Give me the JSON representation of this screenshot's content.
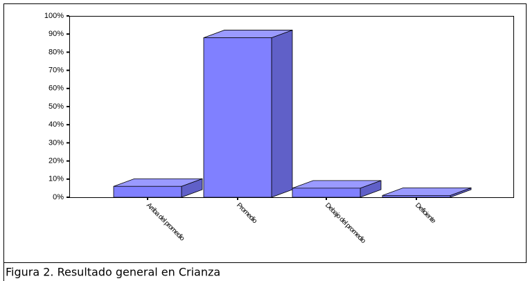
{
  "chart_data": {
    "type": "bar3d",
    "caption": "Figura 2. Resultado general en Crianza",
    "categories": [
      "Arriba del promedio",
      "Promedio",
      "Debajo del promedio",
      "Deficiente"
    ],
    "values": [
      6,
      88,
      5,
      1
    ],
    "color": "#8080ff",
    "ylim": [
      0,
      100
    ],
    "yticks": [
      {
        "value": 0,
        "label": "0%"
      },
      {
        "value": 10,
        "label": "10%"
      },
      {
        "value": 20,
        "label": "20%"
      },
      {
        "value": 30,
        "label": "30%"
      },
      {
        "value": 40,
        "label": "40%"
      },
      {
        "value": 50,
        "label": "50%"
      },
      {
        "value": 60,
        "label": "60%"
      },
      {
        "value": 70,
        "label": "70%"
      },
      {
        "value": 80,
        "label": "80%"
      },
      {
        "value": 90,
        "label": "90%"
      },
      {
        "value": 100,
        "label": "100%"
      }
    ]
  }
}
